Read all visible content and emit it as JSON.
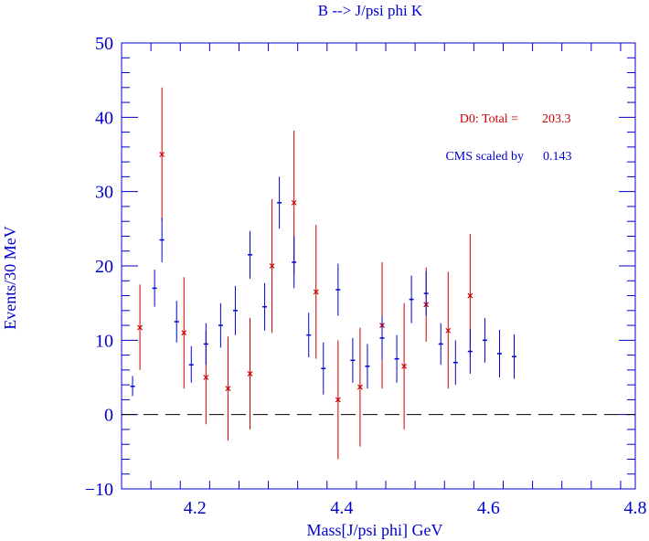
{
  "chart_data": {
    "type": "scatter",
    "title": "B --> J/psi phi K",
    "xlabel": "Mass[J/psi phi] GeV",
    "ylabel": "Events/30 MeV",
    "xlim": [
      4.1,
      4.8
    ],
    "ylim": [
      -10,
      50
    ],
    "x_ticks": [
      4.2,
      4.4,
      4.6,
      4.8
    ],
    "x_tick_labels": [
      "4.2",
      "4.4",
      "4.6",
      "4.8"
    ],
    "y_ticks": [
      -10,
      0,
      10,
      20,
      30,
      40,
      50
    ],
    "y_tick_labels": [
      "−10",
      "0",
      "10",
      "20",
      "30",
      "40",
      "50"
    ],
    "reference_line": 0,
    "annotations": [
      {
        "id": "d0",
        "text_label": "D0:  Total =",
        "text_value": "203.3",
        "color": "#cc0000"
      },
      {
        "id": "cms",
        "text_label": "CMS scaled by",
        "text_value": "0.143",
        "color": "#0000cc"
      }
    ],
    "series": [
      {
        "name": "D0",
        "color": "#cc0000",
        "marker": "x",
        "points": [
          {
            "x": 4.125,
            "y": 11.7,
            "lo": 6.0,
            "hi": 17.5
          },
          {
            "x": 4.155,
            "y": 35.0,
            "lo": 26.0,
            "hi": 44.0
          },
          {
            "x": 4.185,
            "y": 11.0,
            "lo": 3.5,
            "hi": 18.5
          },
          {
            "x": 4.215,
            "y": 5.0,
            "lo": -1.3,
            "hi": 11.3
          },
          {
            "x": 4.245,
            "y": 3.5,
            "lo": -3.5,
            "hi": 10.5
          },
          {
            "x": 4.275,
            "y": 5.5,
            "lo": -2.0,
            "hi": 13.0
          },
          {
            "x": 4.305,
            "y": 20.0,
            "lo": 11.0,
            "hi": 29.0
          },
          {
            "x": 4.335,
            "y": 28.5,
            "lo": 18.8,
            "hi": 38.2
          },
          {
            "x": 4.365,
            "y": 16.5,
            "lo": 7.5,
            "hi": 25.5
          },
          {
            "x": 4.395,
            "y": 2.0,
            "lo": -6.0,
            "hi": 10.0
          },
          {
            "x": 4.425,
            "y": 3.7,
            "lo": -4.3,
            "hi": 11.7
          },
          {
            "x": 4.455,
            "y": 12.0,
            "lo": 3.5,
            "hi": 20.5
          },
          {
            "x": 4.485,
            "y": 6.5,
            "lo": -2.0,
            "hi": 15.0
          },
          {
            "x": 4.515,
            "y": 14.8,
            "lo": 9.8,
            "hi": 19.8
          },
          {
            "x": 4.545,
            "y": 11.3,
            "lo": 3.5,
            "hi": 19.2
          },
          {
            "x": 4.575,
            "y": 16.0,
            "lo": 7.7,
            "hi": 24.3
          }
        ]
      },
      {
        "name": "CMS",
        "color": "#0000cc",
        "marker": "dash",
        "points": [
          {
            "x": 4.115,
            "y": 3.8,
            "lo": 2.5,
            "hi": 5.2
          },
          {
            "x": 4.145,
            "y": 17.0,
            "lo": 14.5,
            "hi": 19.5
          },
          {
            "x": 4.155,
            "y": 23.5,
            "lo": 20.5,
            "hi": 26.5
          },
          {
            "x": 4.175,
            "y": 12.5,
            "lo": 9.7,
            "hi": 15.3
          },
          {
            "x": 4.195,
            "y": 6.7,
            "lo": 4.3,
            "hi": 9.2
          },
          {
            "x": 4.215,
            "y": 9.5,
            "lo": 6.7,
            "hi": 12.3
          },
          {
            "x": 4.235,
            "y": 12.0,
            "lo": 9.0,
            "hi": 15.0
          },
          {
            "x": 4.255,
            "y": 14.0,
            "lo": 10.7,
            "hi": 17.3
          },
          {
            "x": 4.275,
            "y": 21.5,
            "lo": 18.3,
            "hi": 24.7
          },
          {
            "x": 4.295,
            "y": 14.5,
            "lo": 11.3,
            "hi": 17.7
          },
          {
            "x": 4.315,
            "y": 28.5,
            "lo": 25.0,
            "hi": 32.0
          },
          {
            "x": 4.335,
            "y": 20.5,
            "lo": 17.0,
            "hi": 24.0
          },
          {
            "x": 4.355,
            "y": 10.7,
            "lo": 7.7,
            "hi": 13.7
          },
          {
            "x": 4.375,
            "y": 6.2,
            "lo": 2.7,
            "hi": 9.7
          },
          {
            "x": 4.395,
            "y": 16.8,
            "lo": 13.3,
            "hi": 20.3
          },
          {
            "x": 4.415,
            "y": 7.3,
            "lo": 4.3,
            "hi": 10.3
          },
          {
            "x": 4.435,
            "y": 6.5,
            "lo": 3.5,
            "hi": 9.5
          },
          {
            "x": 4.455,
            "y": 10.3,
            "lo": 7.3,
            "hi": 13.3
          },
          {
            "x": 4.475,
            "y": 7.5,
            "lo": 4.3,
            "hi": 10.7
          },
          {
            "x": 4.495,
            "y": 15.5,
            "lo": 12.3,
            "hi": 18.7
          },
          {
            "x": 4.515,
            "y": 16.3,
            "lo": 13.3,
            "hi": 19.3
          },
          {
            "x": 4.535,
            "y": 9.5,
            "lo": 6.7,
            "hi": 12.3
          },
          {
            "x": 4.555,
            "y": 7.0,
            "lo": 4.0,
            "hi": 10.0
          },
          {
            "x": 4.575,
            "y": 8.5,
            "lo": 5.5,
            "hi": 11.5
          },
          {
            "x": 4.595,
            "y": 10.0,
            "lo": 7.0,
            "hi": 13.0
          },
          {
            "x": 4.615,
            "y": 8.2,
            "lo": 5.0,
            "hi": 11.4
          },
          {
            "x": 4.635,
            "y": 7.8,
            "lo": 4.8,
            "hi": 10.8
          }
        ]
      }
    ]
  }
}
